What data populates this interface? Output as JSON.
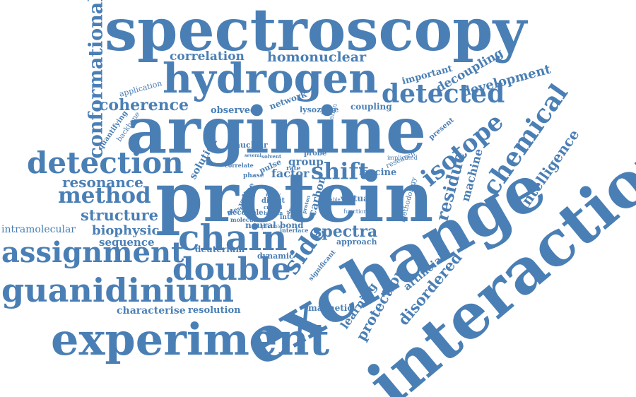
{
  "cloud": {
    "color": "#4a7fb5",
    "words": [
      "spectroscopy",
      "hydrogen",
      "correlation",
      "homonuclear",
      "arginine",
      "protein",
      "exchange",
      "interaction",
      "experiment",
      "guanidinium",
      "assignment",
      "double",
      "chain",
      "detection",
      "method",
      "structure",
      "resonance",
      "biophysic",
      "sequence",
      "intramolecular",
      "characterise",
      "resolution",
      "detected",
      "coherence",
      "conformational",
      "isotope",
      "chemical",
      "shift",
      "side",
      "spectra",
      "residue",
      "machine",
      "intelligence",
      "development",
      "decoupling",
      "important",
      "learning",
      "protection",
      "disordered",
      "artificial",
      "magnetic",
      "approach",
      "leucine",
      "group",
      "factor",
      "bond",
      "virtual",
      "carbon",
      "observed",
      "network",
      "lysozyme",
      "coupling",
      "application",
      "backbone",
      "quantifying",
      "present",
      "research",
      "implicated",
      "nuclear",
      "solution",
      "deuterium",
      "dynamic",
      "valine",
      "neural",
      "possible",
      "interface",
      "decouple",
      "molecule",
      "direct",
      "rate",
      "many",
      "methodology",
      "combination",
      "correlate",
      "phase",
      "pulse",
      "probe",
      "solvent",
      "functional",
      "presence",
      "crystal",
      "human",
      "intra",
      "significant",
      "proton",
      "deeper",
      "enable",
      "study",
      "several"
    ]
  }
}
